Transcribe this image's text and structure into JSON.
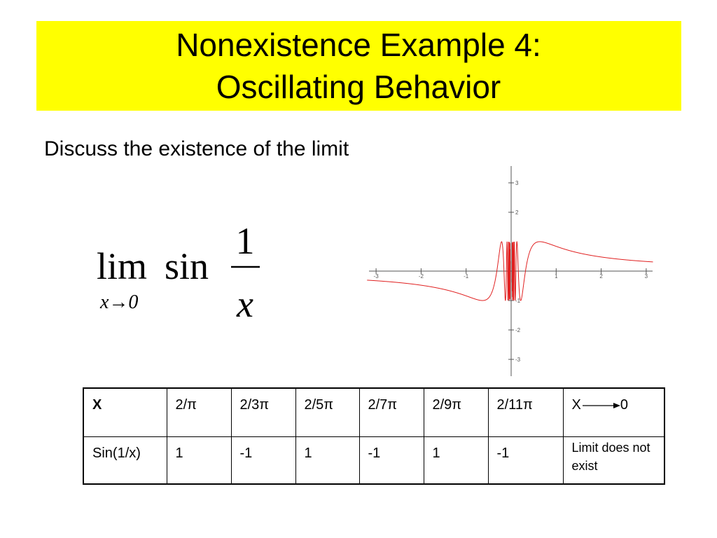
{
  "title": {
    "line1": "Nonexistence Example 4:",
    "line2": "Oscillating Behavior"
  },
  "prompt": "Discuss the existence of the limit",
  "formula": {
    "operator": "lim",
    "function": "sin",
    "numerator": "1",
    "denominator": "x",
    "subscript": "x→0"
  },
  "graph": {
    "xticks": [
      -3,
      -2,
      -1,
      1,
      2,
      3
    ],
    "yticks": [
      3,
      2,
      -1,
      -2,
      -3
    ]
  },
  "table": {
    "rows": [
      [
        "X",
        "2/π",
        "2/3π",
        "2/5π",
        "2/7π",
        "2/9π",
        "2/11π",
        {
          "from": "X",
          "to": "0"
        }
      ],
      [
        "Sin(1/x)",
        "1",
        "-1",
        "1",
        "-1",
        "1",
        "-1",
        "Limit does not exist"
      ]
    ]
  }
}
